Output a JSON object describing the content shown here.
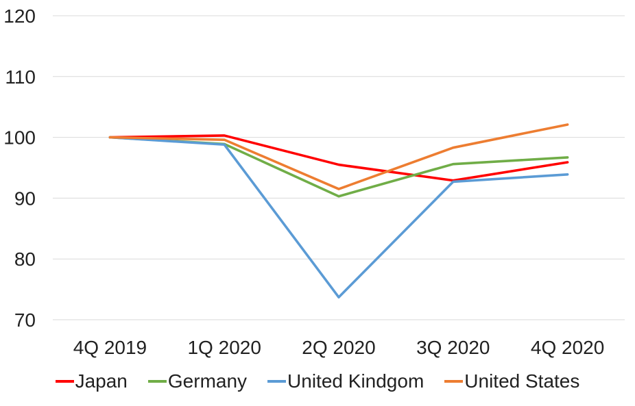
{
  "chart_data": {
    "type": "line",
    "title": "",
    "xlabel": "",
    "ylabel": "",
    "categories": [
      "4Q 2019",
      "1Q 2020",
      "2Q 2020",
      "3Q 2020",
      "4Q 2020"
    ],
    "series": [
      {
        "name": "Japan",
        "color": "#FF0000",
        "values": [
          100,
          100.3,
          95.5,
          92.9,
          95.9
        ]
      },
      {
        "name": "Germany",
        "color": "#70AD47",
        "values": [
          100,
          98.9,
          90.3,
          95.6,
          96.7
        ]
      },
      {
        "name": "United Kindgom",
        "color": "#5B9BD5",
        "values": [
          100,
          98.8,
          73.7,
          92.7,
          93.9
        ]
      },
      {
        "name": "United States",
        "color": "#ED7D31",
        "values": [
          100,
          99.6,
          91.5,
          98.3,
          102.1
        ]
      }
    ],
    "yticks": [
      120,
      110,
      100,
      90,
      80,
      70
    ],
    "ylim": [
      70,
      120
    ],
    "grid": true,
    "legend_position": "bottom"
  },
  "colors": {
    "background": "#FFFFFF",
    "gridline": "#D9D9D9",
    "tick_text": "#212121"
  }
}
